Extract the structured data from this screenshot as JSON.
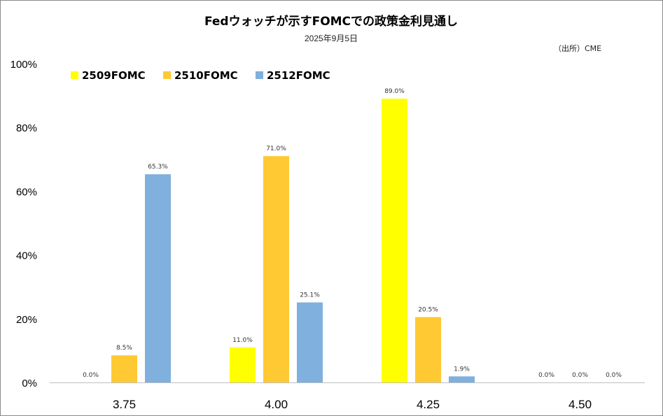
{
  "chart_data": {
    "type": "bar",
    "title": "Fedウォッチが示すFOMCでの政策金利見通し",
    "subtitle": "2025年9月5日",
    "source": "（出所）CME",
    "xlabel": "",
    "ylabel": "",
    "ylim": [
      0,
      100
    ],
    "yticks": [
      "0%",
      "20%",
      "40%",
      "60%",
      "80%",
      "100%"
    ],
    "ytick_values": [
      0,
      20,
      40,
      60,
      80,
      100
    ],
    "categories": [
      "3.75",
      "4.00",
      "4.25",
      "4.50"
    ],
    "legend_position": "top-left",
    "grid": false,
    "series": [
      {
        "name": "2509FOMC",
        "color": "#ffff00",
        "values": [
          0.0,
          11.0,
          89.0,
          0.0
        ],
        "labels": [
          "0.0%",
          "11.0%",
          "89.0%",
          "0.0%"
        ]
      },
      {
        "name": "2510FOMC",
        "color": "#ffc933",
        "values": [
          8.5,
          71.0,
          20.5,
          0.0
        ],
        "labels": [
          "8.5%",
          "71.0%",
          "20.5%",
          "0.0%"
        ]
      },
      {
        "name": "2512FOMC",
        "color": "#7fb0de",
        "values": [
          65.3,
          25.1,
          1.9,
          0.0
        ],
        "labels": [
          "65.3%",
          "25.1%",
          "1.9%",
          "0.0%"
        ]
      }
    ]
  }
}
